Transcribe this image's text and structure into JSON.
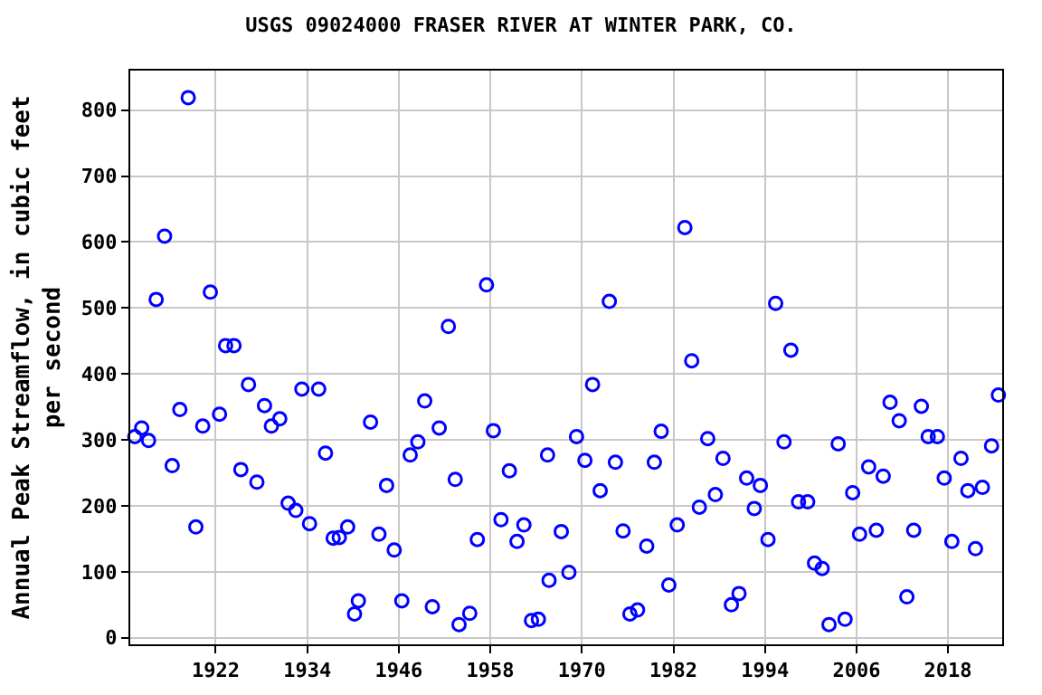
{
  "chart_data": {
    "type": "scatter",
    "title": "USGS 09024000 FRASER RIVER AT WINTER PARK, CO.",
    "ylabel": "Annual Peak Streamflow, in cubic feet\nper second",
    "x": [
      1911.4,
      1912.3,
      1913.2,
      1914.2,
      1915.3,
      1916.3,
      1917.3,
      1918.4,
      1919.4,
      1920.3,
      1921.3,
      1922.5,
      1923.3,
      1924.4,
      1925.3,
      1926.3,
      1927.4,
      1928.4,
      1929.3,
      1930.4,
      1931.5,
      1932.5,
      1933.3,
      1934.3,
      1935.5,
      1936.4,
      1937.4,
      1938.2,
      1939.3,
      1940.2,
      1940.7,
      1942.3,
      1943.4,
      1944.4,
      1945.4,
      1946.4,
      1947.5,
      1948.5,
      1949.4,
      1950.4,
      1951.3,
      1952.5,
      1953.4,
      1953.9,
      1955.3,
      1956.3,
      1957.5,
      1958.4,
      1959.4,
      1960.5,
      1961.5,
      1962.4,
      1963.4,
      1964.3,
      1965.5,
      1965.7,
      1967.3,
      1968.3,
      1969.3,
      1970.4,
      1971.4,
      1972.4,
      1973.6,
      1974.4,
      1975.4,
      1976.3,
      1977.3,
      1978.5,
      1979.5,
      1980.4,
      1981.4,
      1982.5,
      1983.5,
      1984.4,
      1985.4,
      1986.5,
      1987.5,
      1988.5,
      1989.6,
      1990.6,
      1991.6,
      1992.6,
      1993.4,
      1994.4,
      1995.4,
      1996.5,
      1997.4,
      1998.4,
      1999.6,
      2000.5,
      2001.5,
      2002.4,
      2003.6,
      2004.5,
      2005.5,
      2006.4,
      2007.6,
      2008.6,
      2009.5,
      2010.4,
      2011.6,
      2012.6,
      2013.5,
      2014.5,
      2015.4,
      2016.6,
      2017.5,
      2018.5,
      2019.7,
      2020.6,
      2021.6,
      2022.5,
      2023.7,
      2024.6
    ],
    "series": [
      {
        "color": "#0000ff",
        "values": [
          305,
          318,
          299,
          513,
          609,
          261,
          346,
          819,
          168,
          321,
          524,
          339,
          443,
          443,
          255,
          384,
          236,
          352,
          321,
          332,
          204,
          193,
          377,
          173,
          377,
          280,
          151,
          152,
          168,
          36,
          56,
          327,
          157,
          231,
          133,
          56,
          277,
          297,
          359,
          47,
          318,
          472,
          240,
          20,
          37,
          149,
          535,
          314,
          179,
          253,
          146,
          171,
          26,
          28,
          277,
          87,
          161,
          99,
          305,
          269,
          384,
          223,
          510,
          266,
          162,
          36,
          42,
          139,
          266,
          313,
          80,
          171,
          622,
          420,
          198,
          302,
          217,
          272,
          50,
          67,
          242,
          196,
          231,
          149,
          507,
          297,
          436,
          206,
          206,
          113,
          105,
          20,
          294,
          28,
          220,
          157,
          259,
          163,
          245,
          357,
          329,
          62,
          163,
          351,
          305,
          305,
          242,
          146,
          272,
          223,
          135,
          228,
          291,
          368
        ]
      }
    ],
    "xlim": [
      1910.8,
      2025.1
    ],
    "ylim": [
      -10,
      860
    ],
    "xticks": [
      1922,
      1934,
      1946,
      1958,
      1970,
      1982,
      1994,
      2006,
      2018
    ],
    "yticks": [
      0,
      100,
      200,
      300,
      400,
      500,
      600,
      700,
      800
    ],
    "grid": true,
    "marker": "circle"
  }
}
